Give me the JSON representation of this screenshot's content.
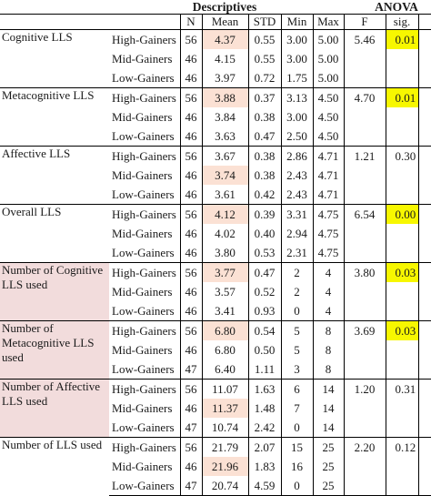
{
  "header": {
    "descriptives": "Descriptives",
    "anova": "ANOVA"
  },
  "columns": {
    "n": "N",
    "mean": "Mean",
    "std": "STD",
    "min": "Min",
    "max": "Max",
    "f": "F",
    "sig": "sig."
  },
  "colors": {
    "group_shade": "#f2dcdc",
    "mean_highlight": "#fbe1d4",
    "sig_highlight": "#f7f700"
  },
  "groups": [
    {
      "label": "Cognitive LLS",
      "f": "5.46",
      "sig": "0.01",
      "rows": [
        {
          "level": "High-Gainers",
          "n": "56",
          "mean": "4.37",
          "std": "0.55",
          "min": "3.00",
          "max": "5.00"
        },
        {
          "level": "Mid-Gainers",
          "n": "46",
          "mean": "4.15",
          "std": "0.55",
          "min": "3.00",
          "max": "5.00"
        },
        {
          "level": "Low-Gainers",
          "n": "46",
          "mean": "3.97",
          "std": "0.72",
          "min": "1.75",
          "max": "5.00"
        }
      ]
    },
    {
      "label": "Metacognitive LLS",
      "f": "4.70",
      "sig": "0.01",
      "rows": [
        {
          "level": "High-Gainers",
          "n": "56",
          "mean": "3.88",
          "std": "0.37",
          "min": "3.13",
          "max": "4.50"
        },
        {
          "level": "Mid-Gainers",
          "n": "46",
          "mean": "3.84",
          "std": "0.38",
          "min": "3.00",
          "max": "4.50"
        },
        {
          "level": "Low-Gainers",
          "n": "46",
          "mean": "3.63",
          "std": "0.47",
          "min": "2.50",
          "max": "4.50"
        }
      ]
    },
    {
      "label": "Affective LLS",
      "f": "1.21",
      "sig": "0.30",
      "rows": [
        {
          "level": "High-Gainers",
          "n": "56",
          "mean": "3.67",
          "std": "0.38",
          "min": "2.86",
          "max": "4.71"
        },
        {
          "level": "Mid-Gainers",
          "n": "46",
          "mean": "3.74",
          "std": "0.38",
          "min": "2.43",
          "max": "4.71"
        },
        {
          "level": "Low-Gainers",
          "n": "46",
          "mean": "3.61",
          "std": "0.42",
          "min": "2.43",
          "max": "4.71"
        }
      ]
    },
    {
      "label": "Overall LLS",
      "f": "6.54",
      "sig": "0.00",
      "rows": [
        {
          "level": "High-Gainers",
          "n": "56",
          "mean": "4.12",
          "std": "0.39",
          "min": "3.31",
          "max": "4.75"
        },
        {
          "level": "Mid-Gainers",
          "n": "46",
          "mean": "4.02",
          "std": "0.40",
          "min": "2.94",
          "max": "4.75"
        },
        {
          "level": "Low-Gainers",
          "n": "46",
          "mean": "3.80",
          "std": "0.53",
          "min": "2.31",
          "max": "4.75"
        }
      ]
    },
    {
      "label": "Number of Cognitive LLS used",
      "f": "3.80",
      "sig": "0.03",
      "rows": [
        {
          "level": "High-Gainers",
          "n": "56",
          "mean": "3.77",
          "std": "0.47",
          "min": "2",
          "max": "4"
        },
        {
          "level": "Mid-Gainers",
          "n": "46",
          "mean": "3.57",
          "std": "0.52",
          "min": "2",
          "max": "4"
        },
        {
          "level": "Low-Gainers",
          "n": "46",
          "mean": "3.41",
          "std": "0.93",
          "min": "0",
          "max": "4"
        }
      ]
    },
    {
      "label": "Number of Metacognitive LLS used",
      "f": "3.69",
      "sig": "0.03",
      "rows": [
        {
          "level": "High-Gainers",
          "n": "56",
          "mean": "6.80",
          "std": "0.54",
          "min": "5",
          "max": "8"
        },
        {
          "level": "Mid-Gainers",
          "n": "46",
          "mean": "6.80",
          "std": "0.50",
          "min": "5",
          "max": "8"
        },
        {
          "level": "Low-Gainers",
          "n": "47",
          "mean": "6.40",
          "std": "1.11",
          "min": "3",
          "max": "8"
        }
      ]
    },
    {
      "label": "Number of Affective LLS used",
      "f": "1.20",
      "sig": "0.31",
      "rows": [
        {
          "level": "High-Gainers",
          "n": "56",
          "mean": "11.07",
          "std": "1.63",
          "min": "6",
          "max": "14"
        },
        {
          "level": "Mid-Gainers",
          "n": "46",
          "mean": "11.37",
          "std": "1.48",
          "min": "7",
          "max": "14"
        },
        {
          "level": "Low-Gainers",
          "n": "47",
          "mean": "10.74",
          "std": "2.42",
          "min": "0",
          "max": "14"
        }
      ]
    },
    {
      "label": "Number of LLS used",
      "f": "2.20",
      "sig": "0.12",
      "rows": [
        {
          "level": "High-Gainers",
          "n": "56",
          "mean": "21.79",
          "std": "2.07",
          "min": "15",
          "max": "25"
        },
        {
          "level": "Mid-Gainers",
          "n": "46",
          "mean": "21.96",
          "std": "1.83",
          "min": "16",
          "max": "25"
        },
        {
          "level": "Low-Gainers",
          "n": "47",
          "mean": "20.74",
          "std": "4.59",
          "min": "0",
          "max": "25"
        }
      ]
    }
  ]
}
